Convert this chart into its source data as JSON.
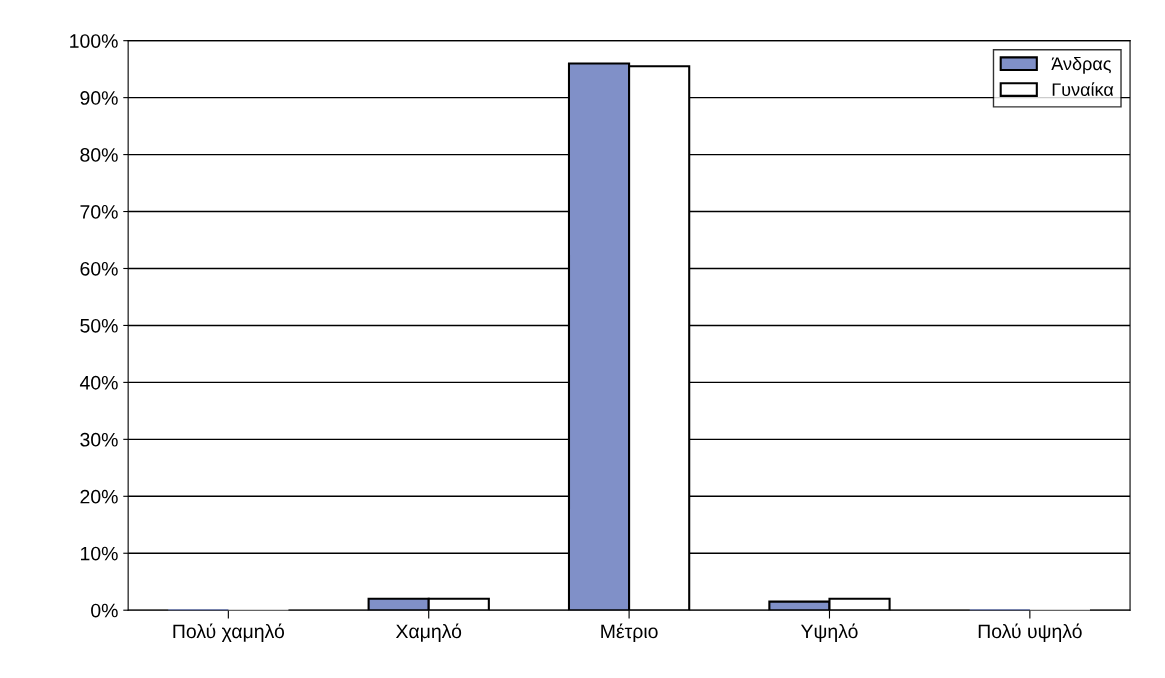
{
  "chart_data": {
    "type": "bar",
    "categories": [
      "Πολύ χαμηλό",
      "Χαμηλό",
      "Μέτριο",
      "Υψηλό",
      "Πολύ υψηλό"
    ],
    "series": [
      {
        "name": "Άνδρας",
        "color": "#8090c8",
        "values": [
          0,
          2,
          96,
          1.5,
          0
        ]
      },
      {
        "name": "Γυναίκα",
        "color": "#ffffff",
        "values": [
          0,
          2,
          95.5,
          2,
          0
        ]
      }
    ],
    "ylim": [
      0,
      100
    ],
    "yticks": [
      {
        "value": 0,
        "label": "0%"
      },
      {
        "value": 10,
        "label": "10%"
      },
      {
        "value": 20,
        "label": "20%"
      },
      {
        "value": 30,
        "label": "30%"
      },
      {
        "value": 40,
        "label": "40%"
      },
      {
        "value": 50,
        "label": "50%"
      },
      {
        "value": 60,
        "label": "60%"
      },
      {
        "value": 70,
        "label": "70%"
      },
      {
        "value": 80,
        "label": "80%"
      },
      {
        "value": 90,
        "label": "90%"
      },
      {
        "value": 100,
        "label": "100%"
      }
    ],
    "grid": "y",
    "legend": "top right"
  }
}
